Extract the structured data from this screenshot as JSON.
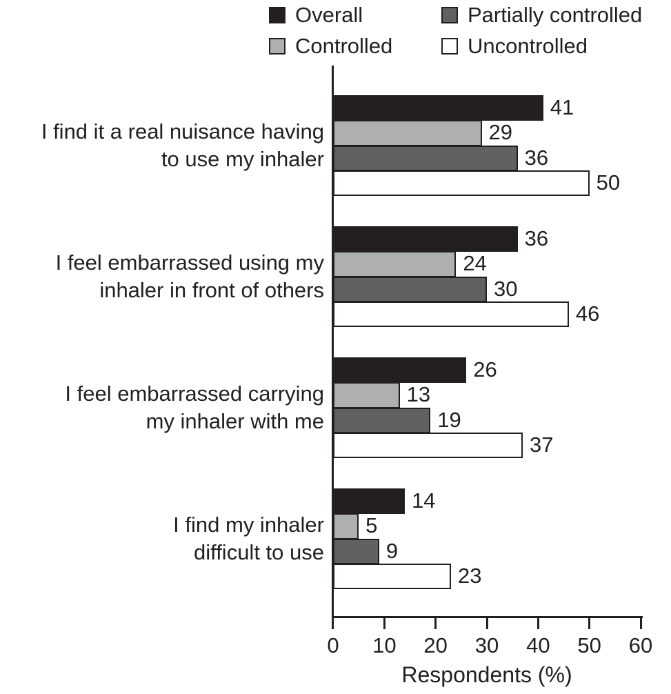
{
  "figure": {
    "background": "#ffffff",
    "text_color": "#231f20"
  },
  "legend": {
    "items": [
      {
        "label": "Overall",
        "color": "#231f20",
        "row": 0,
        "col": 0
      },
      {
        "label": "Partially controlled",
        "color": "#5f6163",
        "row": 0,
        "col": 1
      },
      {
        "label": "Controlled",
        "color": "#adafb1",
        "row": 1,
        "col": 0
      },
      {
        "label": "Uncontrolled",
        "color": "#ffffff",
        "row": 1,
        "col": 1
      }
    ]
  },
  "chart_data": {
    "type": "bar",
    "orientation": "horizontal",
    "title": "",
    "xlabel": "Respondents (%)",
    "xlim": [
      0,
      60
    ],
    "xticks": [
      0,
      10,
      20,
      30,
      40,
      50,
      60
    ],
    "grid": false,
    "legend_position": "top",
    "categories": [
      [
        "I find it a real nuisance having",
        "to use my inhaler"
      ],
      [
        "I feel embarrassed using my",
        "inhaler in front of others"
      ],
      [
        "I feel embarrassed carrying",
        "my inhaler with me"
      ],
      [
        "I find my inhaler",
        "difficult to use"
      ]
    ],
    "series": [
      {
        "name": "Overall",
        "color": "#231f20",
        "values": [
          41,
          36,
          26,
          14
        ]
      },
      {
        "name": "Controlled",
        "color": "#adafb1",
        "values": [
          29,
          24,
          13,
          5
        ]
      },
      {
        "name": "Partially controlled",
        "color": "#5f6163",
        "values": [
          36,
          30,
          19,
          9
        ]
      },
      {
        "name": "Uncontrolled",
        "color": "#ffffff",
        "values": [
          50,
          46,
          37,
          23
        ]
      }
    ]
  }
}
